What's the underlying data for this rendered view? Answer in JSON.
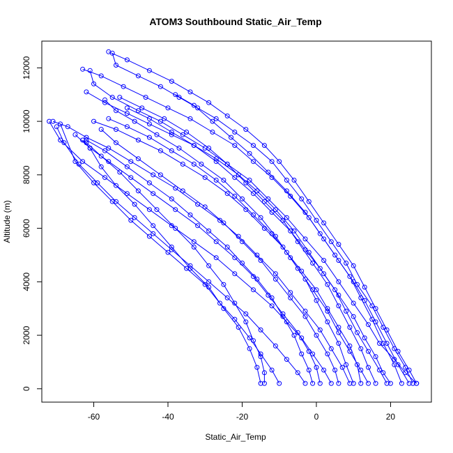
{
  "chart_data": {
    "type": "line",
    "title": "ATOM3 Southbound Static_Air_Temp",
    "xlabel": "Static_Air_Temp",
    "ylabel": "Altitude (m)",
    "xlim": [
      -74.0,
      31.0
    ],
    "ylim": [
      -500,
      13000
    ],
    "x_ticks": [
      -60,
      -40,
      -20,
      0,
      20
    ],
    "y_ticks": [
      0,
      2000,
      4000,
      6000,
      8000,
      10000,
      12000
    ],
    "point_marker": "open-circle",
    "color": "#0000ff",
    "note_profiles": "Each series is one vertical flight profile: altitude vs static air temperature.",
    "series": [
      {
        "x": [
          27,
          25,
          22,
          19,
          16,
          13,
          10,
          6,
          2,
          -2,
          -6,
          -10,
          -14,
          -19,
          -24,
          -29,
          -34,
          -39,
          -45,
          -51,
          -56
        ],
        "y": [
          200,
          700,
          1400,
          2200,
          3000,
          3800,
          4600,
          5400,
          6200,
          7000,
          7800,
          8500,
          9100,
          9700,
          10200,
          10700,
          11100,
          11500,
          11900,
          12300,
          12600
        ]
      },
      {
        "x": [
          26,
          24,
          21,
          18,
          15,
          11,
          8,
          4,
          0,
          -4,
          -8,
          -12,
          -17,
          -22,
          -27,
          -32,
          -37,
          -42,
          -48,
          -54,
          -55
        ],
        "y": [
          200,
          800,
          1500,
          2300,
          3100,
          3900,
          4700,
          5500,
          6300,
          7100,
          7800,
          8500,
          9100,
          9600,
          10100,
          10500,
          10900,
          11300,
          11700,
          12100,
          12550
        ]
      },
      {
        "x": [
          25,
          22,
          19,
          16,
          13,
          10,
          6,
          2,
          -2,
          -7,
          -12,
          -17,
          -22,
          -28,
          -34,
          -40,
          -46,
          -52,
          -58,
          -63
        ],
        "y": [
          200,
          900,
          1700,
          2500,
          3300,
          4000,
          4800,
          5600,
          6400,
          7200,
          7900,
          8500,
          9100,
          9600,
          10100,
          10500,
          10900,
          11300,
          11700,
          11950
        ]
      },
      {
        "x": [
          20,
          18,
          16,
          13,
          10,
          6,
          2,
          -2,
          -6,
          -11,
          -16,
          -21,
          -27,
          -33,
          -39,
          -45,
          -51,
          -57,
          -62
        ],
        "y": [
          200,
          600,
          1200,
          1900,
          2700,
          3500,
          4300,
          5100,
          5900,
          6700,
          7400,
          8000,
          8600,
          9100,
          9500,
          9900,
          10300,
          10700,
          11100
        ]
      },
      {
        "x": [
          14,
          12,
          9,
          6,
          3,
          -1,
          -5,
          -9,
          -14,
          -19,
          -24,
          -30,
          -36,
          -42,
          -48,
          -54,
          -60
        ],
        "y": [
          200,
          700,
          1400,
          2100,
          2900,
          3700,
          4500,
          5300,
          6000,
          6700,
          7300,
          7900,
          8400,
          8900,
          9300,
          9700,
          10000
        ]
      },
      {
        "x": [
          9,
          7,
          4,
          1,
          -3,
          -7,
          -11,
          -16,
          -21,
          -26,
          -32,
          -38,
          -44,
          -50,
          -56,
          -62,
          -67,
          -71
        ],
        "y": [
          200,
          800,
          1500,
          2200,
          2900,
          3600,
          4300,
          5000,
          5700,
          6300,
          6900,
          7500,
          8000,
          8500,
          9000,
          9400,
          9800,
          10000
        ]
      },
      {
        "x": [
          4,
          2,
          -1,
          -4,
          -8,
          -12,
          -17,
          -22,
          -27,
          -33,
          -39,
          -45,
          -51,
          -57,
          -63,
          -69,
          -72
        ],
        "y": [
          200,
          700,
          1300,
          1900,
          2500,
          3100,
          3700,
          4300,
          4900,
          5500,
          6100,
          6700,
          7300,
          7900,
          8500,
          9300,
          10000
        ]
      },
      {
        "x": [
          -3,
          -5,
          -8,
          -11,
          -15,
          -19,
          -24,
          -29,
          -34,
          -39,
          -44,
          -49,
          -54,
          -59,
          -64,
          -68,
          -70
        ],
        "y": [
          200,
          600,
          1100,
          1600,
          2200,
          2800,
          3400,
          4000,
          4600,
          5200,
          5800,
          6400,
          7000,
          7700,
          8400,
          9200,
          9800
        ]
      },
      {
        "x": [
          -10,
          -12,
          -15,
          -18,
          -22,
          -26,
          -30,
          -35,
          -40,
          -45,
          -50,
          -55,
          -60,
          -65,
          -69
        ],
        "y": [
          200,
          700,
          1300,
          1900,
          2600,
          3200,
          3900,
          4500,
          5100,
          5700,
          6300,
          7000,
          7700,
          8500,
          9900
        ]
      },
      {
        "x": [
          -15,
          -16,
          -18,
          -21,
          -25,
          -29,
          -34,
          -39,
          -44,
          -49,
          -54,
          -58,
          -61,
          -63
        ],
        "y": [
          200,
          800,
          1500,
          2300,
          3000,
          3800,
          4500,
          5300,
          6100,
          6900,
          7600,
          8300,
          9000,
          9300
        ]
      },
      {
        "x": [
          27,
          24,
          21,
          17,
          14,
          10,
          6,
          2,
          -3,
          -8,
          -13,
          -18,
          -24,
          -30,
          -36,
          -42,
          -48,
          -55,
          -60,
          -61
        ],
        "y": [
          200,
          600,
          1100,
          1700,
          2400,
          3200,
          4000,
          4800,
          5600,
          6400,
          7100,
          7800,
          8400,
          9000,
          9500,
          10000,
          10400,
          10900,
          11400,
          11900
        ]
      },
      {
        "x": [
          19,
          17,
          14,
          11,
          8,
          5,
          1,
          -3,
          -7,
          -12,
          -17,
          -22,
          -27,
          -33,
          -39,
          -45,
          -51
        ],
        "y": [
          200,
          700,
          1400,
          2100,
          2900,
          3700,
          4500,
          5200,
          5900,
          6600,
          7300,
          7900,
          8500,
          9100,
          9600,
          10100,
          10500
        ]
      },
      {
        "x": [
          12,
          11,
          9,
          6,
          3,
          0,
          -4,
          -8,
          -12,
          -17,
          -22,
          -27,
          -33,
          -39,
          -45,
          -51,
          -56
        ],
        "y": [
          200,
          900,
          1600,
          2300,
          3000,
          3700,
          4400,
          5100,
          5800,
          6500,
          7200,
          7800,
          8400,
          8900,
          9400,
          9800,
          10100
        ]
      },
      {
        "x": [
          6,
          5,
          3,
          0,
          -3,
          -7,
          -11,
          -15,
          -20,
          -25,
          -30,
          -36,
          -42,
          -48,
          -54,
          -58
        ],
        "y": [
          200,
          700,
          1300,
          2000,
          2700,
          3400,
          4100,
          4800,
          5500,
          6200,
          6800,
          7400,
          8000,
          8600,
          9200,
          9700
        ]
      },
      {
        "x": [
          1,
          0,
          -2,
          -5,
          -9,
          -13,
          -17,
          -22,
          -27,
          -32,
          -38,
          -44,
          -50,
          -56,
          -61,
          -65
        ],
        "y": [
          200,
          800,
          1400,
          2100,
          2800,
          3500,
          4200,
          4900,
          5500,
          6100,
          6700,
          7300,
          7900,
          8500,
          9000,
          9500
        ]
      },
      {
        "x": [
          23,
          21,
          18,
          15,
          12,
          9,
          5,
          1,
          -3,
          -8,
          -13,
          -18,
          -23,
          -28,
          -33,
          -38
        ],
        "y": [
          200,
          900,
          1700,
          2600,
          3400,
          4200,
          5000,
          5800,
          6600,
          7400,
          8100,
          8800,
          9400,
          10000,
          10600,
          11000
        ]
      },
      {
        "x": [
          16,
          14,
          12,
          9,
          6,
          3,
          -1,
          -5,
          -9,
          -14,
          -19,
          -24,
          -29,
          -35,
          -41,
          -47,
          -53
        ],
        "y": [
          200,
          800,
          1500,
          2300,
          3100,
          3900,
          4700,
          5500,
          6300,
          7000,
          7700,
          8400,
          9000,
          9600,
          10100,
          10500,
          10900
        ]
      },
      {
        "x": [
          10,
          8,
          6,
          3,
          0,
          -3,
          -7,
          -11,
          -15,
          -20,
          -25,
          -31,
          -37,
          -43,
          -49,
          -54,
          -57
        ],
        "y": [
          200,
          900,
          1700,
          2500,
          3300,
          4100,
          4900,
          5700,
          6400,
          7100,
          7800,
          8400,
          9000,
          9500,
          10000,
          10400,
          10800
        ]
      },
      {
        "x": [
          -1,
          -2,
          -4,
          -6,
          -9,
          -12,
          -16,
          -20,
          -24,
          -29,
          -34,
          -39,
          -45,
          -51,
          -57,
          -62
        ],
        "y": [
          200,
          700,
          1300,
          2000,
          2700,
          3400,
          4100,
          4700,
          5300,
          5900,
          6500,
          7100,
          7700,
          8300,
          8900,
          9300
        ]
      },
      {
        "x": [
          -14,
          -14,
          -15,
          -17,
          -19,
          -22,
          -25,
          -29,
          -33,
          -38,
          -43,
          -48,
          -53,
          -58,
          -62
        ],
        "y": [
          200,
          600,
          1200,
          1800,
          2500,
          3200,
          3900,
          4600,
          5300,
          6000,
          6700,
          7400,
          8100,
          8700,
          9200
        ]
      }
    ]
  }
}
